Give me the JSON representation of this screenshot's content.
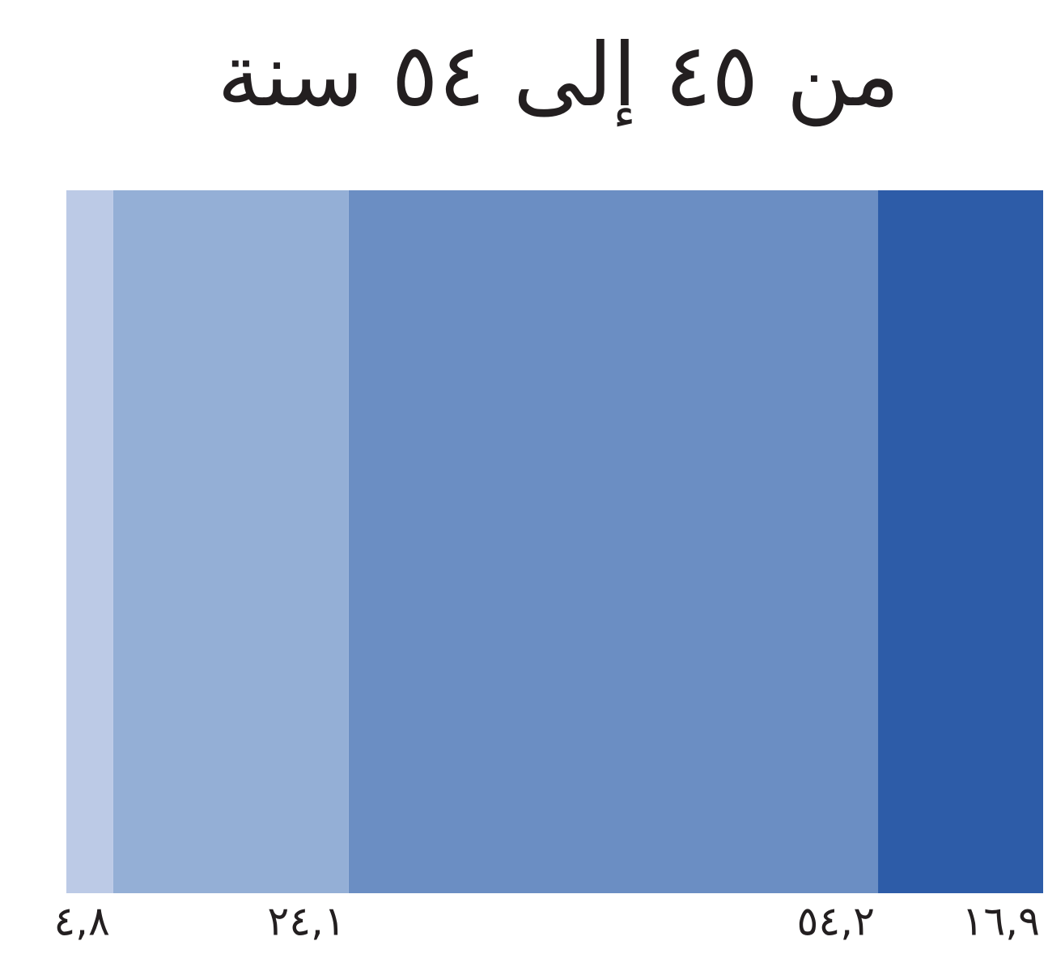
{
  "chart_data": {
    "type": "bar",
    "orientation": "horizontal",
    "stacked": true,
    "direction": "rtl",
    "title": "من ٤٥ إلى ٥٤ سنة",
    "xlim": [
      0,
      100
    ],
    "series": [
      {
        "color": "#2d5ca8",
        "values": [
          16.9
        ],
        "value_labels": [
          "١٦,٩"
        ]
      },
      {
        "color": "#6b8ec3",
        "values": [
          54.2
        ],
        "value_labels": [
          "٥٤,٢"
        ]
      },
      {
        "color": "#94afd6",
        "values": [
          24.1
        ],
        "value_labels": [
          "٢٤,١"
        ]
      },
      {
        "color": "#bccae6",
        "values": [
          4.8
        ],
        "value_labels": [
          "٤,٨"
        ]
      }
    ]
  }
}
